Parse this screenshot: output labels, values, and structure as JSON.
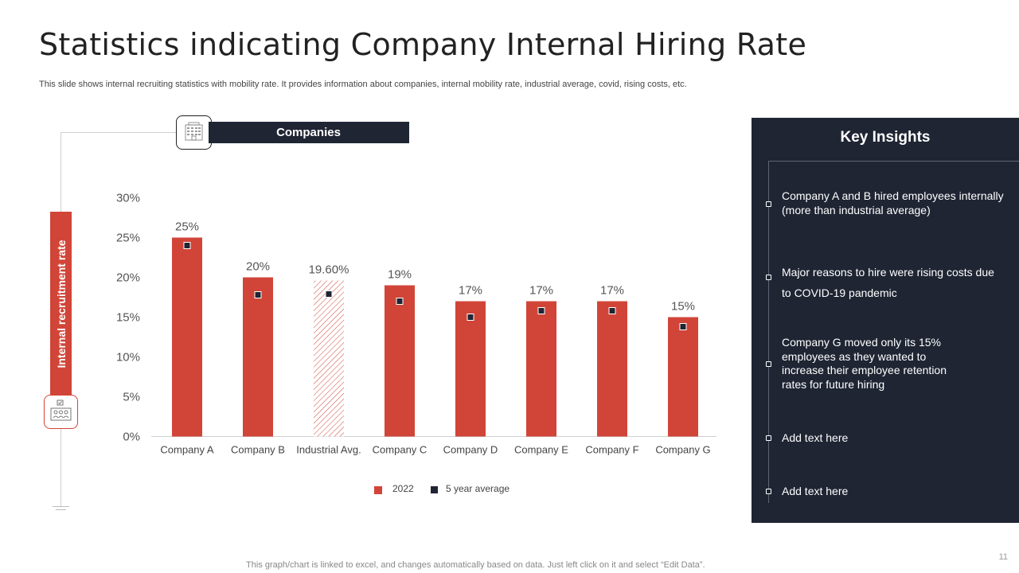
{
  "slide": {
    "title": "Statistics indicating Company Internal Hiring Rate",
    "subtitle": "This slide shows internal recruiting statistics with mobility rate. It provides information about companies, internal mobility rate, industrial average, covid, rising costs, etc.",
    "footer": "This graph/chart is linked to excel, and changes automatically based on data. Just left click on it and select “Edit Data”.",
    "page_number": "11",
    "y_axis_label": "Internal recruitment rate",
    "x_axis_label": "Companies",
    "icons": {
      "companies": "building-icon",
      "recruitment": "people-icon"
    }
  },
  "insights": {
    "title": "Key Insights",
    "items": [
      {
        "text": "Company A and B hired employees internally (more than industrial average)"
      },
      {
        "text": "Major reasons to hire were rising costs due to COVID-19 pandemic"
      },
      {
        "text": "Company G moved only its 15% employees as they wanted to increase their employee retention rates for future hiring"
      },
      {
        "text": "Add text here"
      },
      {
        "text": "Add text here"
      }
    ]
  },
  "colors": {
    "accent": "#d14538",
    "dark": "#1f2533",
    "marker": "#1f2533"
  },
  "chart_data": {
    "type": "bar",
    "categories": [
      "Company A",
      "Company B",
      "Industrial Avg.",
      "Company C",
      "Company D",
      "Company E",
      "Company F",
      "Company G"
    ],
    "series": [
      {
        "name": "2022",
        "values": [
          25,
          20,
          19.6,
          19,
          17,
          17,
          17,
          15
        ]
      },
      {
        "name": "5 year average",
        "values": [
          24,
          17.8,
          17.9,
          17,
          15,
          15.8,
          15.8,
          13.8
        ]
      }
    ],
    "data_labels": [
      "25%",
      "20%",
      "19.60%",
      "19%",
      "17%",
      "17%",
      "17%",
      "15%"
    ],
    "highlight_category": "Industrial Avg.",
    "ylim": [
      0,
      30
    ],
    "yticks": [
      0,
      5,
      10,
      15,
      20,
      25,
      30
    ],
    "ytick_labels": [
      "0%",
      "5%",
      "10%",
      "15%",
      "20%",
      "25%",
      "30%"
    ],
    "grid": false,
    "legend": "bottom"
  }
}
